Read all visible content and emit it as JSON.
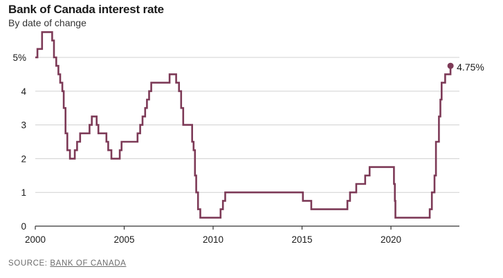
{
  "header": {
    "title": "Bank of Canada interest rate",
    "subtitle": "By date of change"
  },
  "footer": {
    "source_prefix": "SOURCE: ",
    "source_name": "BANK OF CANADA"
  },
  "colors": {
    "line": "#7d3a57",
    "grid": "#d0d0d0",
    "axis": "#333333"
  },
  "chart_data": {
    "type": "line",
    "step": true,
    "title": "Bank of Canada interest rate",
    "subtitle": "By date of change",
    "xlabel": "",
    "ylabel": "",
    "xlim": [
      2000,
      2023.85
    ],
    "ylim": [
      0,
      5.8
    ],
    "x_ticks": [
      {
        "value": 2000,
        "label": "2000"
      },
      {
        "value": 2005,
        "label": "2005"
      },
      {
        "value": 2010,
        "label": "2010"
      },
      {
        "value": 2015,
        "label": "2015"
      },
      {
        "value": 2020,
        "label": "2020"
      }
    ],
    "y_ticks": [
      {
        "value": 0,
        "label": "0"
      },
      {
        "value": 1,
        "label": "1"
      },
      {
        "value": 2,
        "label": "2"
      },
      {
        "value": 3,
        "label": "3"
      },
      {
        "value": 4,
        "label": "4"
      },
      {
        "value": 5,
        "label": "5%"
      }
    ],
    "grid": true,
    "end_label": "4.75%",
    "series": [
      {
        "points": [
          [
            2000.0,
            5.0
          ],
          [
            2000.12,
            5.25
          ],
          [
            2000.38,
            5.75
          ],
          [
            2000.95,
            5.5
          ],
          [
            2001.05,
            5.0
          ],
          [
            2001.18,
            4.75
          ],
          [
            2001.3,
            4.5
          ],
          [
            2001.4,
            4.25
          ],
          [
            2001.52,
            4.0
          ],
          [
            2001.6,
            3.5
          ],
          [
            2001.7,
            2.75
          ],
          [
            2001.8,
            2.25
          ],
          [
            2001.95,
            2.0
          ],
          [
            2002.22,
            2.25
          ],
          [
            2002.35,
            2.5
          ],
          [
            2002.52,
            2.75
          ],
          [
            2003.05,
            3.0
          ],
          [
            2003.18,
            3.25
          ],
          [
            2003.45,
            3.0
          ],
          [
            2003.55,
            2.75
          ],
          [
            2004.0,
            2.5
          ],
          [
            2004.1,
            2.25
          ],
          [
            2004.28,
            2.0
          ],
          [
            2004.75,
            2.25
          ],
          [
            2004.85,
            2.5
          ],
          [
            2005.75,
            2.75
          ],
          [
            2005.9,
            3.0
          ],
          [
            2006.03,
            3.25
          ],
          [
            2006.18,
            3.5
          ],
          [
            2006.28,
            3.75
          ],
          [
            2006.4,
            4.0
          ],
          [
            2006.52,
            4.25
          ],
          [
            2007.55,
            4.5
          ],
          [
            2007.92,
            4.25
          ],
          [
            2008.08,
            4.0
          ],
          [
            2008.2,
            3.5
          ],
          [
            2008.32,
            3.0
          ],
          [
            2008.82,
            2.5
          ],
          [
            2008.9,
            2.25
          ],
          [
            2008.98,
            1.5
          ],
          [
            2009.05,
            1.0
          ],
          [
            2009.15,
            0.5
          ],
          [
            2009.28,
            0.25
          ],
          [
            2010.42,
            0.5
          ],
          [
            2010.55,
            0.75
          ],
          [
            2010.68,
            1.0
          ],
          [
            2015.05,
            0.75
          ],
          [
            2015.52,
            0.5
          ],
          [
            2017.55,
            0.75
          ],
          [
            2017.7,
            1.0
          ],
          [
            2018.05,
            1.25
          ],
          [
            2018.55,
            1.5
          ],
          [
            2018.8,
            1.75
          ],
          [
            2020.17,
            1.25
          ],
          [
            2020.22,
            0.75
          ],
          [
            2020.25,
            0.25
          ],
          [
            2022.18,
            0.5
          ],
          [
            2022.3,
            1.0
          ],
          [
            2022.45,
            1.5
          ],
          [
            2022.53,
            2.5
          ],
          [
            2022.7,
            3.25
          ],
          [
            2022.78,
            3.75
          ],
          [
            2022.85,
            4.25
          ],
          [
            2023.05,
            4.5
          ],
          [
            2023.35,
            4.75
          ]
        ]
      }
    ]
  }
}
